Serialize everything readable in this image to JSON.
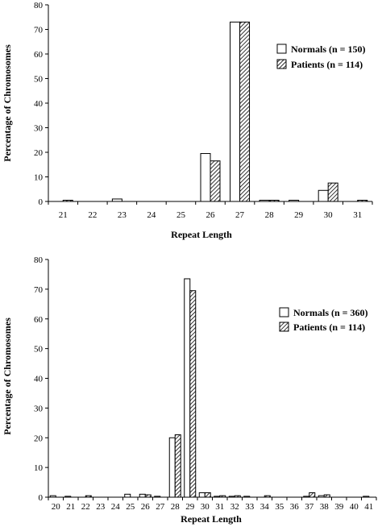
{
  "chart_data": [
    {
      "type": "bar",
      "xlabel": "Repeat Length",
      "ylabel": "Percentage of Chromosomes",
      "ylim": [
        0,
        80
      ],
      "yticks": [
        0,
        10,
        20,
        30,
        40,
        50,
        60,
        70,
        80
      ],
      "categories": [
        "21",
        "22",
        "23",
        "24",
        "25",
        "26",
        "27",
        "28",
        "29",
        "30",
        "31"
      ],
      "series": [
        {
          "name": "Normals (n = 150)",
          "style": "white",
          "values": [
            0,
            0,
            1,
            0,
            0,
            19.5,
            73,
            0.5,
            0.5,
            4.5,
            0
          ]
        },
        {
          "name": "Patients (n = 114)",
          "style": "hatched",
          "values": [
            0.5,
            0,
            0,
            0,
            0,
            16.5,
            73,
            0.5,
            0,
            7.5,
            0.5
          ]
        }
      ],
      "legend_position": "right"
    },
    {
      "type": "bar",
      "xlabel": "Repeat Length",
      "ylabel": "Percentage of Chromosomes",
      "ylim": [
        0,
        80
      ],
      "yticks": [
        0,
        10,
        20,
        30,
        40,
        50,
        60,
        70,
        80
      ],
      "categories": [
        "20",
        "21",
        "22",
        "23",
        "24",
        "25",
        "26",
        "27",
        "28",
        "29",
        "30",
        "31",
        "32",
        "33",
        "34",
        "35",
        "36",
        "37",
        "38",
        "39",
        "40",
        "41"
      ],
      "series": [
        {
          "name": "Normals (n = 360)",
          "style": "white",
          "values": [
            0.5,
            0.3,
            0,
            0,
            0,
            1,
            1,
            0.3,
            20,
            73.5,
            1.5,
            0.3,
            0.3,
            0.3,
            0,
            0,
            0,
            0.3,
            0.5,
            0,
            0,
            0.3
          ]
        },
        {
          "name": "Patients (n = 114)",
          "style": "hatched",
          "values": [
            0,
            0,
            0.5,
            0,
            0,
            0,
            0.8,
            0,
            21,
            69.5,
            1.5,
            0.5,
            0.5,
            0,
            0.5,
            0,
            0,
            1.5,
            0.8,
            0,
            0,
            0
          ]
        }
      ],
      "legend_position": "right"
    }
  ]
}
